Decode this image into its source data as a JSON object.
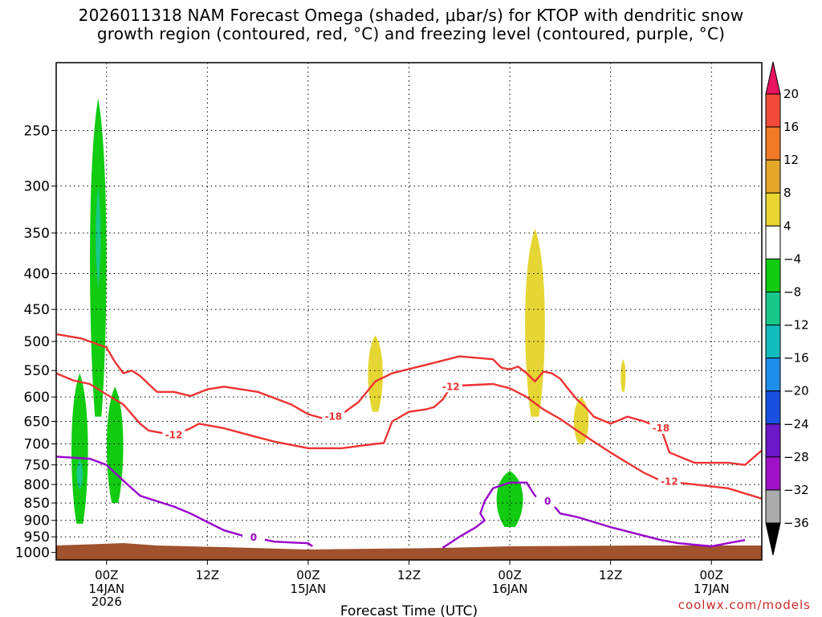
{
  "title": {
    "line1": "2026011318 NAM Forecast Omega (shaded, μbar/s) for KTOP with dendritic snow",
    "line2": "growth region (contoured, red, °C) and freezing level (contoured, purple, °C)"
  },
  "credit": "coolwx.com/models",
  "chart_data": {
    "type": "time-height cross section",
    "xlabel": "Forecast Time (UTC)",
    "ylabel": "",
    "x_ticks": [
      {
        "hour": 6,
        "label": "00Z",
        "sub": "14JAN",
        "sub2": "2026"
      },
      {
        "hour": 18,
        "label": "12Z"
      },
      {
        "hour": 30,
        "label": "00Z",
        "sub": "15JAN"
      },
      {
        "hour": 42,
        "label": "12Z"
      },
      {
        "hour": 54,
        "label": "00Z",
        "sub": "16JAN"
      },
      {
        "hour": 66,
        "label": "12Z"
      },
      {
        "hour": 78,
        "label": "00Z",
        "sub": "17JAN"
      }
    ],
    "x_range_hours": [
      0,
      84
    ],
    "y_ticks_hpa": [
      250,
      300,
      350,
      400,
      450,
      500,
      550,
      600,
      650,
      700,
      750,
      800,
      850,
      900,
      950,
      1000
    ],
    "y_range_hpa": [
      200,
      1025
    ],
    "colorbar": {
      "units": "μbar/s",
      "levels": [
        20,
        16,
        12,
        8,
        4,
        -4,
        -8,
        -12,
        -16,
        -20,
        -24,
        -28,
        -32,
        -36
      ],
      "colors": [
        "#e8145f",
        "#f24a3a",
        "#f07a28",
        "#e3a82a",
        "#e8d632",
        "#ffffff",
        "#11cc11",
        "#18c88a",
        "#12bcbc",
        "#1e8ee8",
        "#1a50e0",
        "#6a18c8",
        "#a012c8",
        "#aaaaaa",
        "#000000"
      ]
    },
    "contours": [
      {
        "name": "snow-growth-upper",
        "value_c": -18,
        "label": "-18",
        "color": "#ee3333",
        "points": [
          [
            0,
            488
          ],
          [
            3,
            495
          ],
          [
            6,
            510
          ],
          [
            7,
            535
          ],
          [
            8,
            555
          ],
          [
            9,
            550
          ],
          [
            10,
            560
          ],
          [
            11,
            575
          ],
          [
            12,
            590
          ],
          [
            14,
            590
          ],
          [
            16,
            598
          ],
          [
            18,
            585
          ],
          [
            20,
            580
          ],
          [
            24,
            590
          ],
          [
            28,
            615
          ],
          [
            30,
            635
          ],
          [
            32,
            645
          ],
          [
            34,
            635
          ],
          [
            36,
            610
          ],
          [
            38,
            570
          ],
          [
            40,
            555
          ],
          [
            44,
            540
          ],
          [
            48,
            525
          ],
          [
            52,
            530
          ],
          [
            53,
            545
          ],
          [
            54,
            548
          ],
          [
            55,
            543
          ],
          [
            56,
            555
          ],
          [
            57,
            570
          ],
          [
            58,
            552
          ],
          [
            59,
            555
          ],
          [
            60,
            565
          ],
          [
            61,
            585
          ],
          [
            62,
            605
          ],
          [
            63,
            620
          ],
          [
            64,
            640
          ],
          [
            66,
            655
          ],
          [
            68,
            640
          ],
          [
            70,
            650
          ],
          [
            72,
            665
          ],
          [
            73,
            720
          ],
          [
            76,
            745
          ],
          [
            80,
            745
          ],
          [
            82,
            750
          ],
          [
            84,
            715
          ]
        ]
      },
      {
        "name": "snow-growth-lower",
        "value_c": -12,
        "label": "-12",
        "color": "#ee3333",
        "points": [
          [
            0,
            555
          ],
          [
            2,
            568
          ],
          [
            4,
            575
          ],
          [
            6,
            595
          ],
          [
            8,
            615
          ],
          [
            10,
            655
          ],
          [
            11,
            670
          ],
          [
            14,
            680
          ],
          [
            16,
            665
          ],
          [
            17,
            655
          ],
          [
            20,
            665
          ],
          [
            22,
            675
          ],
          [
            26,
            695
          ],
          [
            30,
            710
          ],
          [
            34,
            710
          ],
          [
            38,
            700
          ],
          [
            39,
            698
          ],
          [
            40,
            650
          ],
          [
            42,
            630
          ],
          [
            44,
            625
          ],
          [
            45,
            620
          ],
          [
            46,
            605
          ],
          [
            47,
            580
          ],
          [
            48,
            578
          ],
          [
            52,
            575
          ],
          [
            54,
            583
          ],
          [
            56,
            600
          ],
          [
            58,
            625
          ],
          [
            60,
            645
          ],
          [
            62,
            670
          ],
          [
            64,
            695
          ],
          [
            66,
            720
          ],
          [
            68,
            745
          ],
          [
            70,
            770
          ],
          [
            72,
            790
          ],
          [
            76,
            800
          ],
          [
            80,
            810
          ],
          [
            84,
            838
          ]
        ]
      },
      {
        "name": "freezing-level",
        "value_c": 0,
        "label": "0",
        "color": "#9900cc",
        "points": [
          [
            0,
            730
          ],
          [
            4,
            735
          ],
          [
            6,
            750
          ],
          [
            8,
            790
          ],
          [
            10,
            830
          ],
          [
            12,
            845
          ],
          [
            14,
            860
          ],
          [
            16,
            880
          ],
          [
            18,
            905
          ],
          [
            20,
            930
          ],
          [
            22,
            945
          ],
          [
            26,
            965
          ],
          [
            28,
            968
          ],
          [
            30,
            970
          ],
          [
            30.5,
            980
          ]
        ]
      },
      {
        "name": "freezing-level-east",
        "value_c": 0,
        "label": "0",
        "color": "#9900cc",
        "points": [
          [
            46,
            985
          ],
          [
            48,
            950
          ],
          [
            50,
            920
          ],
          [
            51,
            900
          ],
          [
            50.5,
            880
          ],
          [
            51,
            845
          ],
          [
            52,
            810
          ],
          [
            54,
            795
          ],
          [
            56,
            795
          ],
          [
            57,
            830
          ],
          [
            58,
            840
          ],
          [
            59,
            850
          ],
          [
            60,
            880
          ],
          [
            62,
            890
          ],
          [
            66,
            920
          ],
          [
            69,
            940
          ],
          [
            72,
            960
          ],
          [
            74,
            970
          ],
          [
            78,
            980
          ],
          [
            80,
            970
          ],
          [
            82,
            960
          ]
        ]
      }
    ],
    "omega_blobs": [
      {
        "name": "green-column-1",
        "value": -8,
        "hour_center": 5,
        "hpa_top": 225,
        "hpa_bottom": 640
      },
      {
        "name": "green-column-2",
        "value": -8,
        "hour_center": 2.8,
        "hpa_top": 555,
        "hpa_bottom": 910
      },
      {
        "name": "green-column-3",
        "value": -8,
        "hour_center": 7,
        "hpa_top": 580,
        "hpa_bottom": 850
      },
      {
        "name": "green-blob-16jan",
        "value": -8,
        "hour_center": 54,
        "hpa_top": 765,
        "hpa_bottom": 920
      },
      {
        "name": "yellow-blob-15jan",
        "value": 4,
        "hour_center": 38,
        "hpa_top": 490,
        "hpa_bottom": 630
      },
      {
        "name": "yellow-column-16jan",
        "value": 4,
        "hour_center": 57,
        "hpa_top": 345,
        "hpa_bottom": 640
      },
      {
        "name": "yellow-blob-small",
        "value": 4,
        "hour_center": 62.5,
        "hpa_top": 600,
        "hpa_bottom": 700
      },
      {
        "name": "yellow-blob-tiny",
        "value": 4,
        "hour_center": 67.5,
        "hpa_top": 530,
        "hpa_bottom": 590
      }
    ],
    "surface_hpa": 975
  }
}
